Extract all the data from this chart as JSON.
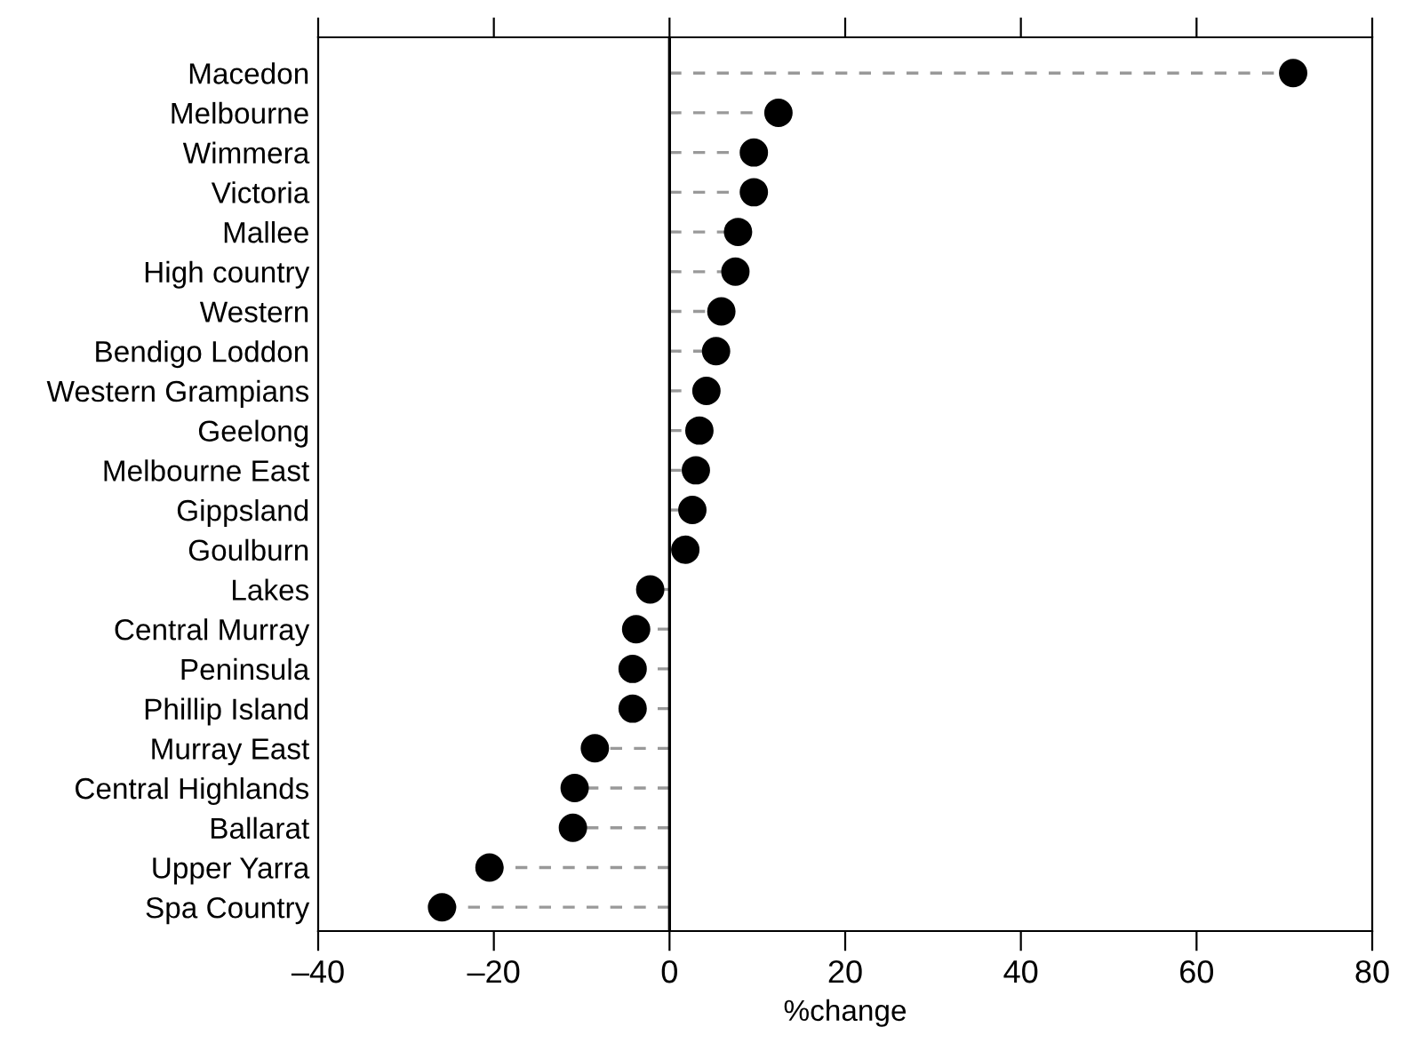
{
  "chart_data": {
    "type": "lollipop",
    "orientation": "horizontal",
    "xlabel": "%change",
    "categories": [
      "Macedon",
      "Melbourne",
      "Wimmera",
      "Victoria",
      "Mallee",
      "High country",
      "Western",
      "Bendigo Loddon",
      "Western Grampians",
      "Geelong",
      "Melbourne East",
      "Gippsland",
      "Goulburn",
      "Lakes",
      "Central Murray",
      "Peninsula",
      "Phillip Island",
      "Murray East",
      "Central Highlands",
      "Ballarat",
      "Upper Yarra",
      "Spa Country"
    ],
    "values": [
      71.0,
      12.4,
      9.6,
      9.6,
      7.8,
      7.5,
      5.9,
      5.3,
      4.2,
      3.4,
      3.0,
      2.6,
      1.8,
      -2.2,
      -3.8,
      -4.2,
      -4.2,
      -8.5,
      -10.8,
      -11.0,
      -20.5,
      -25.9
    ],
    "color": "#000000",
    "marker": "circle",
    "line_style": "dashed",
    "xlim": [
      -40,
      80
    ],
    "xticks": [
      {
        "value": -40,
        "label": "–40"
      },
      {
        "value": -20,
        "label": "–20"
      },
      0,
      20,
      40,
      60,
      80
    ],
    "ref_lines": [
      {
        "axis": "x",
        "value": 0,
        "color": "#000000"
      }
    ],
    "grid": false,
    "legend": false
  }
}
